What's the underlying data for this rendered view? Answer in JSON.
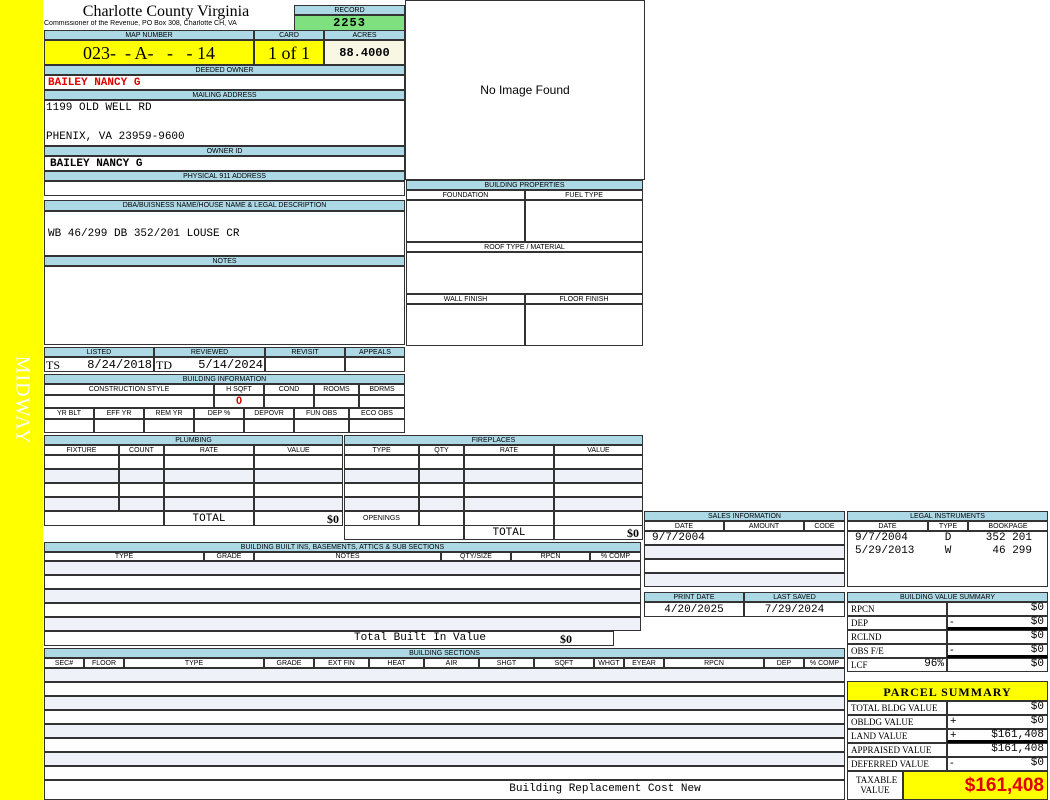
{
  "sidebar_label": "MIDWAY",
  "header": {
    "title": "Charlotte County Virginia",
    "subtitle": "Commissioner of the Revenue, PO Box 308, Charlotte CH, VA",
    "record_label": "RECORD",
    "record": "2253"
  },
  "map": {
    "map_label": "MAP NUMBER",
    "map_number": "023-  - A-   -   - 14",
    "card_label": "CARD",
    "card": "1 of 1",
    "acres_label": "ACRES",
    "acres": "88.4000"
  },
  "owner": {
    "deeded_label": "DEEDED OWNER",
    "deeded": "BAILEY NANCY G",
    "mailing_label": "MAILING ADDRESS",
    "mailing_line1": "1199 OLD WELL RD",
    "mailing_line2": "PHENIX, VA 23959-9600",
    "owner_id_label": "OWNER ID",
    "owner_id": "BAILEY NANCY G",
    "physical_label": "PHYSICAL 911 ADDRESS",
    "physical": ""
  },
  "image": {
    "placeholder": "No Image Found"
  },
  "legal": {
    "label": "DBA/BUISNESS NAME/HOUSE NAME & LEGAL DESCRIPTION",
    "value": "WB 46/299 DB 352/201 LOUSE CR",
    "notes_label": "NOTES"
  },
  "building_properties": {
    "title": "BUILDING PROPERTIES",
    "foundation": "FOUNDATION",
    "fuel_type": "FUEL TYPE",
    "roof": "ROOF TYPE / MATERIAL",
    "wall": "WALL FINISH",
    "floor": "FLOOR FINISH"
  },
  "review": {
    "listed_label": "LISTED",
    "reviewed_label": "REVIEWED",
    "revisit_label": "REVISIT",
    "appeals_label": "APPEALS",
    "listed_by": "TS",
    "listed_date": "8/24/2018",
    "reviewed_by": "TD",
    "reviewed_date": "5/14/2024"
  },
  "building_info": {
    "title": "BUILDING INFORMATION",
    "cols1": [
      "CONSTRUCTION STYLE",
      "H SQFT",
      "COND",
      "ROOMS",
      "BDRMS"
    ],
    "hsqft": "0",
    "cols2": [
      "YR BLT",
      "EFF YR",
      "REM YR",
      "DEP %",
      "DEPOVR",
      "FUN OBS",
      "ECO OBS"
    ]
  },
  "plumbing": {
    "title": "PLUMBING",
    "cols": [
      "FIXTURE",
      "COUNT",
      "RATE",
      "VALUE"
    ],
    "total_label": "TOTAL",
    "total": "$0"
  },
  "fireplaces": {
    "title": "FIREPLACES",
    "cols": [
      "TYPE",
      "QTY",
      "RATE",
      "VALUE"
    ],
    "openings_label": "OPENINGS",
    "total_label": "TOTAL",
    "total": "$0"
  },
  "built_ins": {
    "title": "BUILDING BUILT INS, BASEMENTS, ATTICS & SUB SECTIONS",
    "cols": [
      "TYPE",
      "GRADE",
      "NOTES",
      "QTY/SIZE",
      "RPCN",
      "% COMP"
    ],
    "total_label": "Total Built In Value",
    "total": "$0"
  },
  "sections": {
    "title": "BUILDING SECTIONS",
    "cols": [
      "SEC#",
      "FLOOR",
      "TYPE",
      "GRADE",
      "EXT FIN",
      "HEAT",
      "AIR",
      "SHGT",
      "SQFT",
      "WHGT",
      "EYEAR",
      "RPCN",
      "DEP",
      "% COMP"
    ],
    "footer": "Building Replacement Cost New"
  },
  "sales": {
    "title": "SALES INFORMATION",
    "cols": [
      "DATE",
      "AMOUNT",
      "CODE"
    ],
    "rows": [
      [
        "9/7/2004",
        "",
        ""
      ]
    ]
  },
  "legal_instruments": {
    "title": "LEGAL INSTRUMENTS",
    "cols": [
      "DATE",
      "TYPE",
      "BOOKPAGE"
    ],
    "rows": [
      [
        "9/7/2004",
        "D",
        "352 201"
      ],
      [
        "5/29/2013",
        "W",
        "46 299"
      ]
    ]
  },
  "dates": {
    "print_label": "PRINT DATE",
    "print": "4/20/2025",
    "saved_label": "LAST SAVED",
    "saved": "7/29/2024"
  },
  "value_summary": {
    "title": "BUILDING VALUE SUMMARY",
    "rows": [
      {
        "label": "RPCN",
        "sign": "",
        "value": "$0"
      },
      {
        "label": "DEP",
        "sign": "-",
        "value": "$0"
      },
      {
        "label": "RCLND",
        "sign": "",
        "value": "$0"
      },
      {
        "label": "OBS F/E",
        "sign": "-",
        "value": "$0"
      },
      {
        "label": "LCF",
        "sign": "",
        "value": "$0"
      }
    ],
    "lcf_pct": "96%"
  },
  "parcel": {
    "title": "PARCEL SUMMARY",
    "rows": [
      {
        "label": "TOTAL BLDG VALUE",
        "sign": "",
        "value": "$0"
      },
      {
        "label": "OBLDG VALUE",
        "sign": "+",
        "value": "$0"
      },
      {
        "label": "LAND VALUE",
        "sign": "+",
        "value": "$161,408"
      },
      {
        "label": "APPRAISED VALUE",
        "sign": "",
        "value": "$161,408"
      },
      {
        "label": "DEFERRED VALUE",
        "sign": "-",
        "value": "$0"
      }
    ],
    "taxable_label": "TAXABLE VALUE",
    "taxable": "$161,408"
  },
  "colors": {
    "header": "#add8e6",
    "sidebar": "#ffff00",
    "record": "#7fe07f",
    "owner": "#e00000",
    "taxable": "#e00000"
  }
}
